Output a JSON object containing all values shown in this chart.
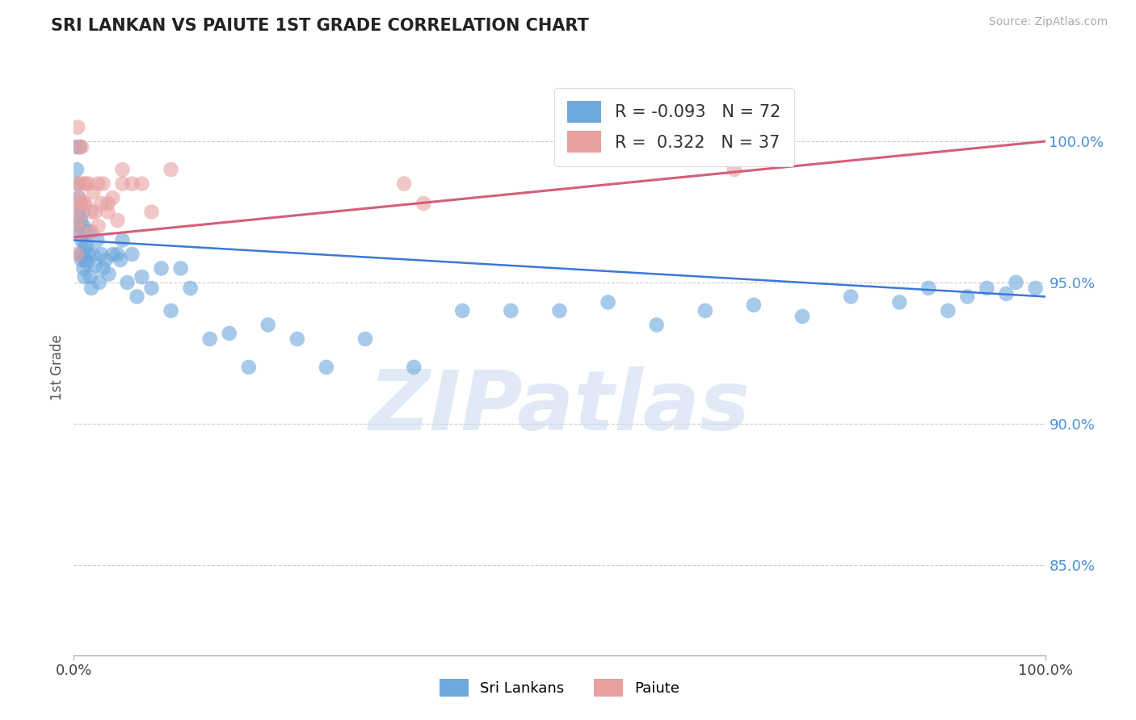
{
  "title": "SRI LANKAN VS PAIUTE 1ST GRADE CORRELATION CHART",
  "source_text": "Source: ZipAtlas.com",
  "ylabel": "1st Grade",
  "y_tick_labels": [
    "85.0%",
    "90.0%",
    "95.0%",
    "100.0%"
  ],
  "y_tick_values": [
    0.85,
    0.9,
    0.95,
    1.0
  ],
  "x_lim": [
    0.0,
    1.0
  ],
  "y_lim": [
    0.818,
    1.022
  ],
  "blue_r": -0.093,
  "blue_n": 72,
  "pink_r": 0.322,
  "pink_n": 37,
  "blue_color": "#6fa8dc",
  "pink_color": "#e8a0a0",
  "blue_line_color": "#3c78d8",
  "pink_line_color": "#d45f7a",
  "legend_label_blue": "Sri Lankans",
  "legend_label_pink": "Paiute",
  "watermark": "ZIPatlas",
  "blue_line_y0": 0.965,
  "blue_line_y1": 0.945,
  "pink_line_y0": 0.966,
  "pink_line_y1": 1.0,
  "blue_scatter_x": [
    0.002,
    0.003,
    0.004,
    0.004,
    0.005,
    0.005,
    0.006,
    0.006,
    0.007,
    0.007,
    0.008,
    0.008,
    0.009,
    0.009,
    0.01,
    0.01,
    0.011,
    0.011,
    0.012,
    0.012,
    0.013,
    0.014,
    0.015,
    0.016,
    0.017,
    0.018,
    0.02,
    0.022,
    0.024,
    0.026,
    0.028,
    0.03,
    0.033,
    0.036,
    0.04,
    0.045,
    0.048,
    0.05,
    0.055,
    0.06,
    0.065,
    0.07,
    0.08,
    0.09,
    0.1,
    0.11,
    0.12,
    0.14,
    0.16,
    0.18,
    0.2,
    0.23,
    0.26,
    0.3,
    0.35,
    0.4,
    0.45,
    0.5,
    0.55,
    0.6,
    0.65,
    0.7,
    0.75,
    0.8,
    0.85,
    0.88,
    0.9,
    0.92,
    0.94,
    0.96,
    0.97,
    0.99
  ],
  "blue_scatter_y": [
    0.998,
    0.99,
    0.985,
    0.975,
    0.98,
    0.97,
    0.968,
    0.998,
    0.972,
    0.96,
    0.965,
    0.958,
    0.975,
    0.96,
    0.97,
    0.955,
    0.963,
    0.952,
    0.968,
    0.958,
    0.963,
    0.957,
    0.96,
    0.968,
    0.952,
    0.948,
    0.96,
    0.956,
    0.965,
    0.95,
    0.96,
    0.955,
    0.958,
    0.953,
    0.96,
    0.96,
    0.958,
    0.965,
    0.95,
    0.96,
    0.945,
    0.952,
    0.948,
    0.955,
    0.94,
    0.955,
    0.948,
    0.93,
    0.932,
    0.92,
    0.935,
    0.93,
    0.92,
    0.93,
    0.92,
    0.94,
    0.94,
    0.94,
    0.943,
    0.935,
    0.94,
    0.942,
    0.938,
    0.945,
    0.943,
    0.948,
    0.94,
    0.945,
    0.948,
    0.946,
    0.95,
    0.948
  ],
  "pink_scatter_x": [
    0.002,
    0.003,
    0.004,
    0.005,
    0.006,
    0.007,
    0.008,
    0.01,
    0.012,
    0.015,
    0.018,
    0.02,
    0.022,
    0.025,
    0.028,
    0.03,
    0.035,
    0.04,
    0.045,
    0.05,
    0.06,
    0.07,
    0.08,
    0.1,
    0.34,
    0.36,
    0.65,
    0.68,
    0.003,
    0.005,
    0.007,
    0.009,
    0.012,
    0.018,
    0.025,
    0.035,
    0.05
  ],
  "pink_scatter_y": [
    0.975,
    0.985,
    1.005,
    0.98,
    0.998,
    0.968,
    0.998,
    0.978,
    0.985,
    0.985,
    0.968,
    0.982,
    0.975,
    0.97,
    0.978,
    0.985,
    0.975,
    0.98,
    0.972,
    0.99,
    0.985,
    0.985,
    0.975,
    0.99,
    0.985,
    0.978,
    0.998,
    0.99,
    0.96,
    0.972,
    0.978,
    0.985,
    0.978,
    0.975,
    0.985,
    0.978,
    0.985
  ]
}
